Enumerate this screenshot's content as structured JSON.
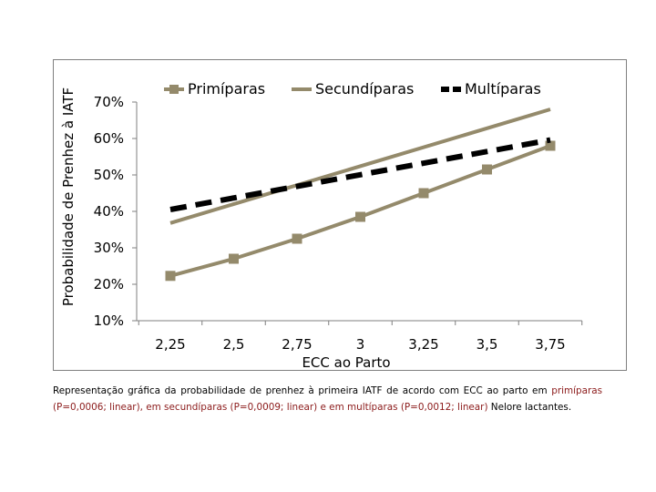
{
  "chart_data": {
    "type": "line",
    "xlabel": "ECC ao Parto",
    "ylabel": "Probabilidade de Prenhez à IATF",
    "x_ticks": [
      "2,25",
      "2,5",
      "2,75",
      "3",
      "3,25",
      "3,5",
      "3,75"
    ],
    "y_ticks": [
      "10%",
      "20%",
      "30%",
      "40%",
      "50%",
      "60%",
      "70%"
    ],
    "xlim": [
      2.25,
      3.75
    ],
    "ylim": [
      10,
      70
    ],
    "legend_position": "top",
    "grid": false,
    "series": [
      {
        "name": "Primíparas",
        "color": "#948a6b",
        "style": "solid-square-markers",
        "x": [
          2.25,
          2.5,
          2.75,
          3.0,
          3.25,
          3.5,
          3.75
        ],
        "y": [
          22.3,
          27,
          32.5,
          38.5,
          45,
          51.5,
          58
        ]
      },
      {
        "name": "Secundíparas",
        "color": "#948a6b",
        "style": "solid",
        "x": [
          2.25,
          3.75
        ],
        "y": [
          36.8,
          68
        ]
      },
      {
        "name": "Multíparas",
        "color": "#000000",
        "style": "dashed",
        "x": [
          2.25,
          3.75
        ],
        "y": [
          40.5,
          59.6
        ]
      }
    ]
  },
  "caption": {
    "part1": "Representação gráfica da probabilidade de prenhez à primeira IATF de acordo com ECC ao parto em ",
    "part2": "primíparas (P=0,0006; linear), em secundíparas (P=0,0009; linear) e em multíparas (P=0,0012; linear)",
    "part3": " Nelore lactantes."
  }
}
